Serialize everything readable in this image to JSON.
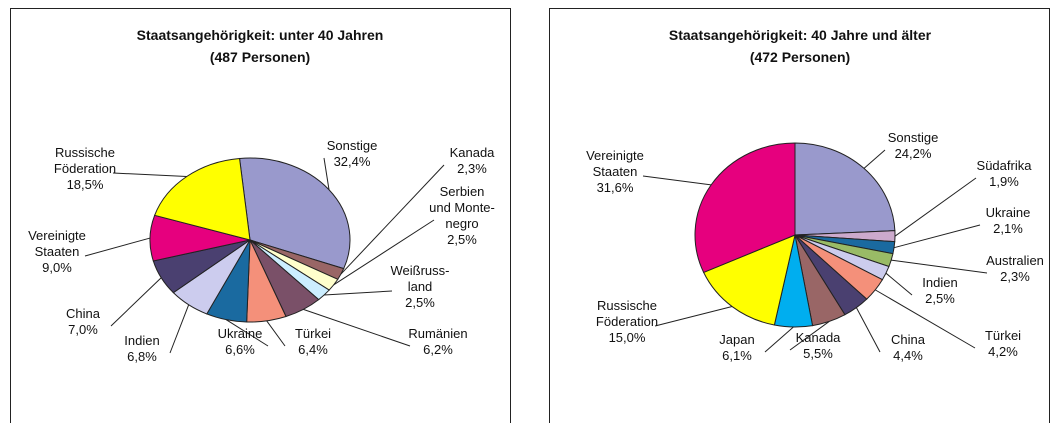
{
  "chart_data": [
    {
      "type": "pie",
      "title": "Staatsangehörigkeit: unter 40 Jahren",
      "subtitle": "(487 Personen)",
      "categories": [
        "Sonstige",
        "Kanada",
        "Serbien\nund Monte-\nnegro",
        "Weißruss-\nland",
        "Rumänien",
        "Türkei",
        "Ukraine",
        "Indien",
        "China",
        "Vereinigte\nStaaten",
        "Russische\nFöderation"
      ],
      "values": [
        32.4,
        2.3,
        2.5,
        2.5,
        6.2,
        6.4,
        6.6,
        6.8,
        7.0,
        9.0,
        18.5
      ],
      "value_labels": [
        "32,4%",
        "2,3%",
        "2,5%",
        "2,5%",
        "6,2%",
        "6,4%",
        "6,6%",
        "6,8%",
        "7,0%",
        "9,0%",
        "18,5%"
      ],
      "colors": [
        "#9999cc",
        "#996666",
        "#ffffcc",
        "#cceeff",
        "#7a5068",
        "#f4907a",
        "#1a6aa0",
        "#ccccee",
        "#4a4070",
        "#e6007e",
        "#ffff00"
      ]
    },
    {
      "type": "pie",
      "title": "Staatsangehörigkeit: 40 Jahre und älter",
      "subtitle": "(472 Personen)",
      "categories": [
        "Sonstige",
        "Südafrika",
        "Ukraine",
        "Australien",
        "Indien",
        "Türkei",
        "China",
        "Kanada",
        "Japan",
        "Russische\nFöderation",
        "Vereinigte\nStaaten"
      ],
      "values": [
        24.2,
        1.9,
        2.1,
        2.3,
        2.5,
        4.2,
        4.4,
        5.5,
        6.1,
        15.0,
        31.6
      ],
      "value_labels": [
        "24,2%",
        "1,9%",
        "2,1%",
        "2,3%",
        "2,5%",
        "4,2%",
        "4,4%",
        "5,5%",
        "6,1%",
        "15,0%",
        "31,6%"
      ],
      "colors": [
        "#9999cc",
        "#ccaacc",
        "#1a6aa0",
        "#99bb66",
        "#ccccee",
        "#f4907a",
        "#4a4070",
        "#996666",
        "#00aeef",
        "#ffff00",
        "#e6007e"
      ]
    }
  ]
}
